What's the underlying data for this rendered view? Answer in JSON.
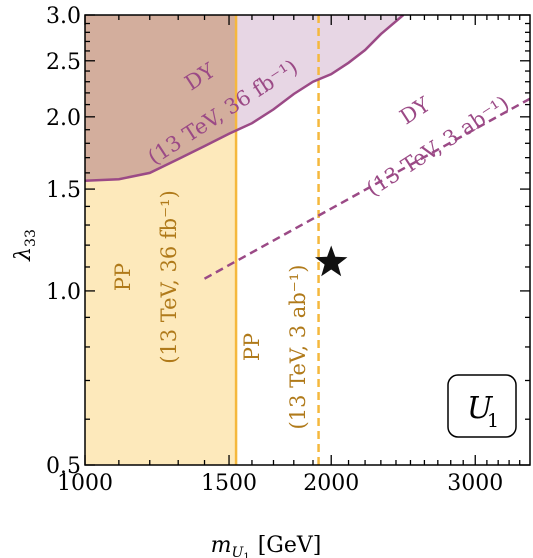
{
  "chart_data": {
    "type": "area",
    "xlabel": "m",
    "xlabel_sub": "U",
    "xlabel_sub2": "1",
    "xlabel_unit": "[GeV]",
    "ylabel": "λ",
    "ylabel_sub": "33",
    "xscale": "log",
    "yscale": "log",
    "xlim": [
      1000,
      3500
    ],
    "ylim": [
      0.5,
      3.0
    ],
    "xticks": [
      {
        "value": 1000,
        "label": "1000"
      },
      {
        "value": 1500,
        "label": "1500"
      },
      {
        "value": 2000,
        "label": "2000"
      },
      {
        "value": 3000,
        "label": "3000"
      }
    ],
    "yticks": [
      {
        "value": 0.5,
        "label": "0.5"
      },
      {
        "value": 1.0,
        "label": "1.0"
      },
      {
        "value": 1.5,
        "label": "1.5"
      },
      {
        "value": 2.0,
        "label": "2.0"
      },
      {
        "value": 2.5,
        "label": "2.5"
      },
      {
        "value": 3.0,
        "label": "3.0"
      }
    ],
    "series": [
      {
        "label_line1": "DY",
        "label_line2": "(13 TeV, 36 fb⁻¹)",
        "style": "solid",
        "color": "#9b4a86",
        "fill": "#c9a3c3",
        "x": [
          1000,
          1100,
          1200,
          1300,
          1400,
          1500,
          1600,
          1700,
          1800,
          1900,
          2000,
          2100,
          2200,
          2300,
          2450
        ],
        "y": [
          1.55,
          1.56,
          1.6,
          1.69,
          1.78,
          1.87,
          1.95,
          2.06,
          2.19,
          2.3,
          2.37,
          2.48,
          2.61,
          2.78,
          3.0
        ]
      },
      {
        "label_line1": "DY",
        "label_line2": "(13 TeV, 3 ab⁻¹)",
        "style": "dashed",
        "color": "#9b4a86",
        "x": [
          1400,
          3500
        ],
        "y": [
          1.05,
          2.15
        ]
      },
      {
        "label_line1": "PP",
        "label_line2": "(13 TeV, 36 fb⁻¹)",
        "style": "solid",
        "color": "#f5b83d",
        "fill": "#fde9bb",
        "x_limit": 1530
      },
      {
        "label_line1": "PP",
        "label_line2": "(13 TeV, 3 ab⁻¹)",
        "style": "dashed",
        "color": "#f5b83d",
        "x_limit": 1930
      }
    ],
    "annotations": [
      {
        "type": "star",
        "x": 2000,
        "y": 1.12
      },
      {
        "type": "box-label",
        "main": "U",
        "sub": "1",
        "position": "bottom-right"
      }
    ]
  }
}
